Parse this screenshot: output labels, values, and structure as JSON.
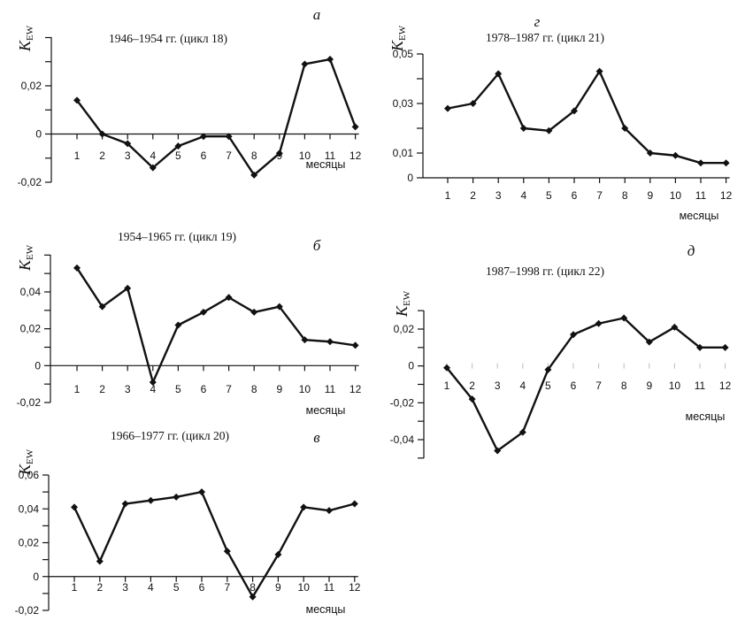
{
  "chart_data": [
    {
      "id": "a",
      "type": "line",
      "panel_letter": "а",
      "title": "1946–1954 гг. (цикл 18)",
      "ylabel_main": "K",
      "ylabel_sub": "EW",
      "xlabel": "месяцы",
      "x": [
        1,
        2,
        3,
        4,
        5,
        6,
        7,
        8,
        9,
        10,
        11,
        12
      ],
      "values": [
        0.014,
        0.0,
        -0.004,
        -0.014,
        -0.005,
        -0.001,
        -0.001,
        -0.017,
        -0.008,
        0.029,
        0.031,
        0.003
      ],
      "ylim": [
        -0.02,
        0.04
      ],
      "yticks": [
        0.02,
        0,
        -0.02
      ],
      "ytick_labels": [
        "0,02",
        "0",
        "-0,02"
      ],
      "xtick_labels": [
        "1",
        "2",
        "3",
        "4",
        "5",
        "6",
        "7",
        "8",
        "9",
        "10",
        "11",
        "12"
      ],
      "zero_line": true,
      "grid": false
    },
    {
      "id": "b",
      "type": "line",
      "panel_letter": "б",
      "title": "1954–1965 гг. (цикл 19)",
      "ylabel_main": "K",
      "ylabel_sub": "EW",
      "xlabel": "месяцы",
      "x": [
        1,
        2,
        3,
        4,
        5,
        6,
        7,
        8,
        9,
        10,
        11,
        12
      ],
      "values": [
        0.053,
        0.032,
        0.042,
        -0.009,
        0.022,
        0.029,
        0.037,
        0.029,
        0.032,
        0.014,
        0.013,
        0.011
      ],
      "ylim": [
        -0.02,
        0.06
      ],
      "yticks": [
        0.04,
        0.02,
        0,
        -0.02
      ],
      "ytick_labels": [
        "0,04",
        "0,02",
        "0",
        "-0,02"
      ],
      "xtick_labels": [
        "1",
        "2",
        "3",
        "4",
        "5",
        "6",
        "7",
        "8",
        "9",
        "10",
        "11",
        "12"
      ],
      "zero_line": true,
      "grid": false
    },
    {
      "id": "v",
      "type": "line",
      "panel_letter": "в",
      "title": "1966–1977 гг. (цикл 20)",
      "ylabel_main": "K",
      "ylabel_sub": "EW",
      "xlabel": "месяцы",
      "x": [
        1,
        2,
        3,
        4,
        5,
        6,
        7,
        8,
        9,
        10,
        11,
        12
      ],
      "values": [
        0.041,
        0.009,
        0.043,
        0.045,
        0.047,
        0.05,
        0.015,
        -0.012,
        0.013,
        0.041,
        0.039,
        0.043
      ],
      "ylim": [
        -0.02,
        0.06
      ],
      "yticks": [
        0.06,
        0.04,
        0.02,
        0,
        -0.02
      ],
      "ytick_labels": [
        "0,06",
        "0,04",
        "0,02",
        "0",
        "-0,02"
      ],
      "xtick_labels": [
        "1",
        "2",
        "3",
        "4",
        "5",
        "6",
        "7",
        "8",
        "9",
        "10",
        "11",
        "12"
      ],
      "zero_line": true,
      "grid": false
    },
    {
      "id": "g",
      "type": "line",
      "panel_letter": "г",
      "title": "1978–1987 гг. (цикл 21)",
      "ylabel_main": "K",
      "ylabel_sub": "EW",
      "xlabel": "месяцы",
      "x": [
        1,
        2,
        3,
        4,
        5,
        6,
        7,
        8,
        9,
        10,
        11,
        12
      ],
      "values": [
        0.028,
        0.03,
        0.042,
        0.02,
        0.019,
        0.027,
        0.043,
        0.02,
        0.01,
        0.009,
        0.006,
        0.006
      ],
      "ylim": [
        0,
        0.05
      ],
      "yticks": [
        0.05,
        0.03,
        0.01,
        0
      ],
      "ytick_labels": [
        "0,05",
        "0,03",
        "0,01",
        "0"
      ],
      "xtick_labels": [
        "1",
        "2",
        "3",
        "4",
        "5",
        "6",
        "7",
        "8",
        "9",
        "10",
        "11",
        "12"
      ],
      "zero_line": true,
      "grid": false
    },
    {
      "id": "d",
      "type": "line",
      "panel_letter": "д",
      "title": "1987–1998 гг. (цикл 22)",
      "ylabel_main": "K",
      "ylabel_sub": "EW",
      "xlabel": "месяцы",
      "x": [
        1,
        2,
        3,
        4,
        5,
        6,
        7,
        8,
        9,
        10,
        11,
        12
      ],
      "values": [
        -0.001,
        -0.018,
        -0.046,
        -0.036,
        -0.002,
        0.017,
        0.023,
        0.026,
        0.013,
        0.021,
        0.01,
        0.01
      ],
      "ylim": [
        -0.05,
        0.03
      ],
      "yticks": [
        0.02,
        0,
        -0.02,
        -0.04
      ],
      "ytick_labels": [
        "0,02",
        "0",
        "-0,02",
        "-0,04"
      ],
      "xtick_labels": [
        "1",
        "2",
        "3",
        "4",
        "5",
        "6",
        "7",
        "8",
        "9",
        "10",
        "11",
        "12"
      ],
      "zero_line": false,
      "grid": false
    }
  ]
}
